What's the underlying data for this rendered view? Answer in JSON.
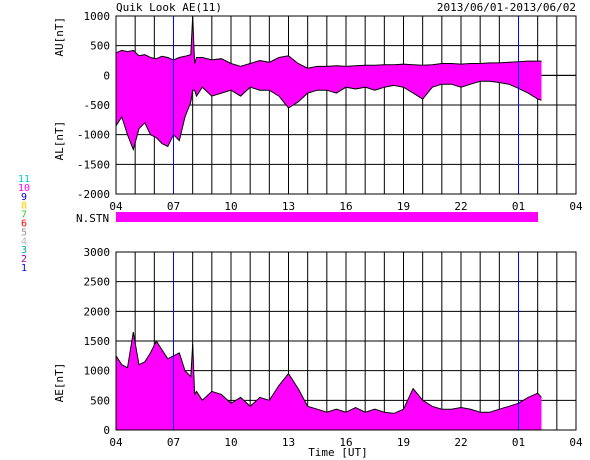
{
  "header": {
    "title": "Quik Look AE(11)",
    "date_range": "2013/06/01-2013/06/02"
  },
  "station_strip": {
    "label": "N.STN",
    "color": "#ff00ff"
  },
  "station_counts": {
    "items": [
      {
        "label": "11",
        "color": "#00cccc"
      },
      {
        "label": "10",
        "color": "#ff00ff"
      },
      {
        "label": "9",
        "color": "#0000cc"
      },
      {
        "label": "8",
        "color": "#ffcc00"
      },
      {
        "label": "7",
        "color": "#33cc33"
      },
      {
        "label": "6",
        "color": "#ff0000"
      },
      {
        "label": "5",
        "color": "#999999"
      },
      {
        "label": "4",
        "color": "#bbbbbb"
      },
      {
        "label": "3",
        "color": "#00aaaa"
      },
      {
        "label": "2",
        "color": "#aa00aa"
      },
      {
        "label": "1",
        "color": "#0000ff"
      }
    ]
  },
  "chart_data": [
    {
      "type": "area",
      "panel": "AU-AL",
      "ylabel_top": "AU[nT]",
      "ylabel_bottom": "AL[nT]",
      "xlim": [
        4,
        28
      ],
      "ylim": [
        -2000,
        1000
      ],
      "yticks": [
        "1000",
        "500",
        "0",
        "-500",
        "-1000",
        "-1500",
        "-2000"
      ],
      "xticks": [
        "04",
        "07",
        "10",
        "13",
        "16",
        "19",
        "22",
        "01",
        "04"
      ],
      "fill_color": "#ff00ff",
      "line_color": "#000000",
      "marker_lines_hour": [
        7,
        25
      ],
      "x": [
        4.0,
        4.3,
        4.6,
        4.9,
        5.2,
        5.5,
        5.8,
        6.1,
        6.4,
        6.7,
        7.0,
        7.3,
        7.6,
        7.9,
        8.0,
        8.1,
        8.2,
        8.5,
        9.0,
        9.5,
        10.0,
        10.5,
        11.0,
        11.5,
        12.0,
        12.5,
        13.0,
        13.5,
        14.0,
        14.5,
        15.0,
        15.5,
        16.0,
        16.5,
        17.0,
        17.5,
        18.0,
        18.5,
        19.0,
        19.5,
        20.0,
        20.5,
        21.0,
        21.5,
        22.0,
        22.5,
        23.0,
        23.5,
        24.0,
        24.5,
        25.0,
        25.5,
        26.0,
        26.2
      ],
      "series": [
        {
          "name": "AU",
          "values": [
            380,
            420,
            400,
            420,
            330,
            350,
            300,
            280,
            320,
            300,
            260,
            300,
            320,
            350,
            1000,
            200,
            300,
            300,
            260,
            280,
            200,
            150,
            200,
            250,
            220,
            300,
            330,
            200,
            120,
            150,
            150,
            160,
            150,
            160,
            170,
            170,
            180,
            180,
            190,
            180,
            170,
            180,
            200,
            200,
            190,
            200,
            200,
            210,
            210,
            220,
            230,
            240,
            240,
            240
          ]
        },
        {
          "name": "AL",
          "values": [
            -850,
            -700,
            -1000,
            -1250,
            -900,
            -800,
            -1000,
            -1050,
            -1150,
            -1200,
            -1000,
            -1100,
            -700,
            -450,
            -250,
            -250,
            -350,
            -200,
            -350,
            -300,
            -250,
            -350,
            -200,
            -250,
            -250,
            -350,
            -550,
            -450,
            -300,
            -250,
            -250,
            -300,
            -200,
            -230,
            -200,
            -250,
            -200,
            -170,
            -200,
            -300,
            -400,
            -200,
            -150,
            -150,
            -200,
            -150,
            -100,
            -100,
            -120,
            -150,
            -220,
            -300,
            -400,
            -420
          ]
        }
      ]
    },
    {
      "type": "area",
      "panel": "AE",
      "ylabel": "AE[nT]",
      "xlabel": "Time [UT]",
      "xlim": [
        4,
        28
      ],
      "ylim": [
        0,
        3000
      ],
      "yticks": [
        "3000",
        "2500",
        "2000",
        "1500",
        "1000",
        "500",
        "0"
      ],
      "xticks": [
        "04",
        "07",
        "10",
        "13",
        "16",
        "19",
        "22",
        "01",
        "04"
      ],
      "fill_color": "#ff00ff",
      "line_color": "#000000",
      "marker_lines_hour": [
        7,
        25
      ],
      "x": [
        4.0,
        4.3,
        4.6,
        4.9,
        5.2,
        5.5,
        5.8,
        6.1,
        6.4,
        6.7,
        7.0,
        7.3,
        7.6,
        7.9,
        8.0,
        8.1,
        8.2,
        8.5,
        9.0,
        9.5,
        10.0,
        10.5,
        11.0,
        11.5,
        12.0,
        12.5,
        13.0,
        13.5,
        14.0,
        14.5,
        15.0,
        15.5,
        16.0,
        16.5,
        17.0,
        17.5,
        18.0,
        18.5,
        19.0,
        19.5,
        20.0,
        20.5,
        21.0,
        21.5,
        22.0,
        22.5,
        23.0,
        23.5,
        24.0,
        24.5,
        25.0,
        25.5,
        26.0,
        26.2
      ],
      "series": [
        {
          "name": "AE",
          "values": [
            1250,
            1100,
            1050,
            1650,
            1100,
            1150,
            1300,
            1500,
            1350,
            1200,
            1250,
            1300,
            1000,
            900,
            1450,
            600,
            650,
            500,
            650,
            600,
            450,
            550,
            400,
            550,
            500,
            750,
            950,
            700,
            400,
            350,
            300,
            350,
            300,
            380,
            300,
            350,
            300,
            280,
            350,
            700,
            500,
            400,
            350,
            350,
            380,
            350,
            300,
            300,
            350,
            400,
            450,
            550,
            620,
            550
          ]
        }
      ]
    }
  ]
}
